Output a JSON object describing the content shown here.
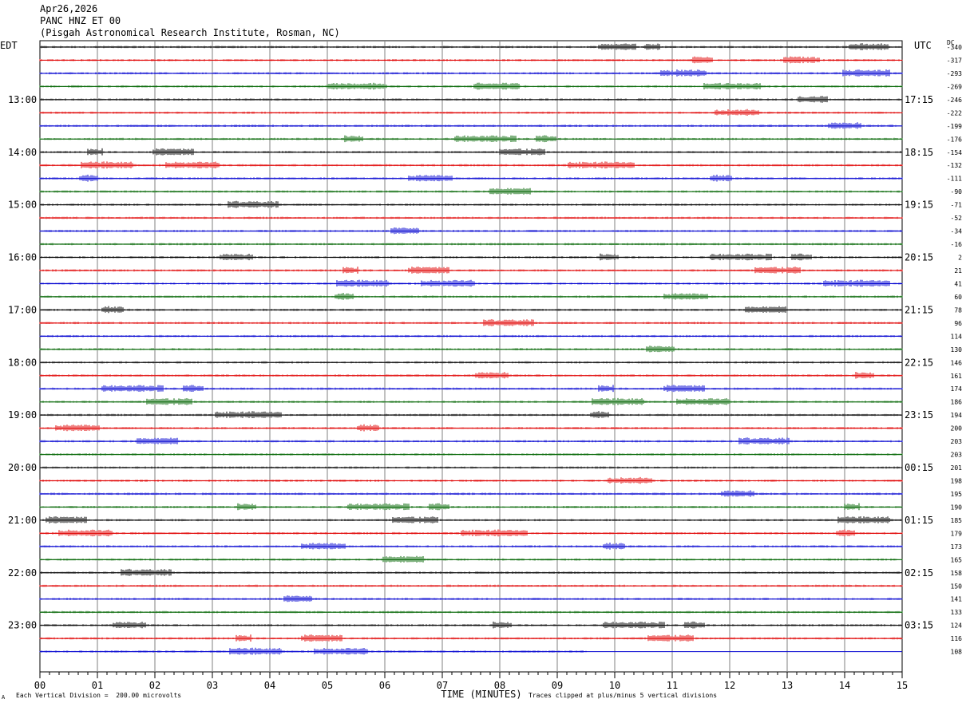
{
  "header": {
    "date": "Apr26,2026",
    "station": "PANC HNZ ET 00",
    "institution": "(Pisgah Astronomical Research Institute, Rosman, NC)"
  },
  "footer": {
    "scale_note": "Each Vertical Division =  200.00 microvolts",
    "clip_note": "Traces clipped at plus/minus 5 vertical divisions",
    "corner_mark": "A"
  },
  "chart_data": {
    "type": "line",
    "title": "",
    "xlabel": "TIME (MINUTES)",
    "x_ticks": [
      "00",
      "01",
      "02",
      "03",
      "04",
      "05",
      "06",
      "07",
      "08",
      "09",
      "10",
      "11",
      "12",
      "13",
      "14",
      "15"
    ],
    "xlim": [
      0,
      15
    ],
    "left_axis_label": "EDT",
    "right_axis_label": "UTC",
    "dc_label": "DC",
    "grid": true,
    "trace_colors": [
      "#000000",
      "#e00000",
      "#0000d0",
      "#006400"
    ],
    "left_hour_labels": [
      "13:00",
      "14:00",
      "15:00",
      "16:00",
      "17:00",
      "18:00",
      "19:00",
      "20:00",
      "21:00",
      "22:00",
      "23:00"
    ],
    "right_hour_labels": [
      "17:15",
      "18:15",
      "19:15",
      "20:15",
      "21:15",
      "22:15",
      "23:15",
      "00:15",
      "01:15",
      "02:15",
      "03:15"
    ],
    "dc_offsets": [
      "-340",
      "-317",
      "-293",
      "-269",
      "-246",
      "-222",
      "-199",
      "-176",
      "-154",
      "-132",
      "-111",
      "-90",
      "-71",
      "-52",
      "-34",
      "-16",
      "2",
      "21",
      "41",
      "60",
      "78",
      "96",
      "114",
      "130",
      "146",
      "161",
      "174",
      "186",
      "194",
      "200",
      "203",
      "203",
      "201",
      "198",
      "195",
      "190",
      "185",
      "179",
      "173",
      "165",
      "158",
      "150",
      "141",
      "133",
      "124",
      "116",
      "108"
    ]
  }
}
